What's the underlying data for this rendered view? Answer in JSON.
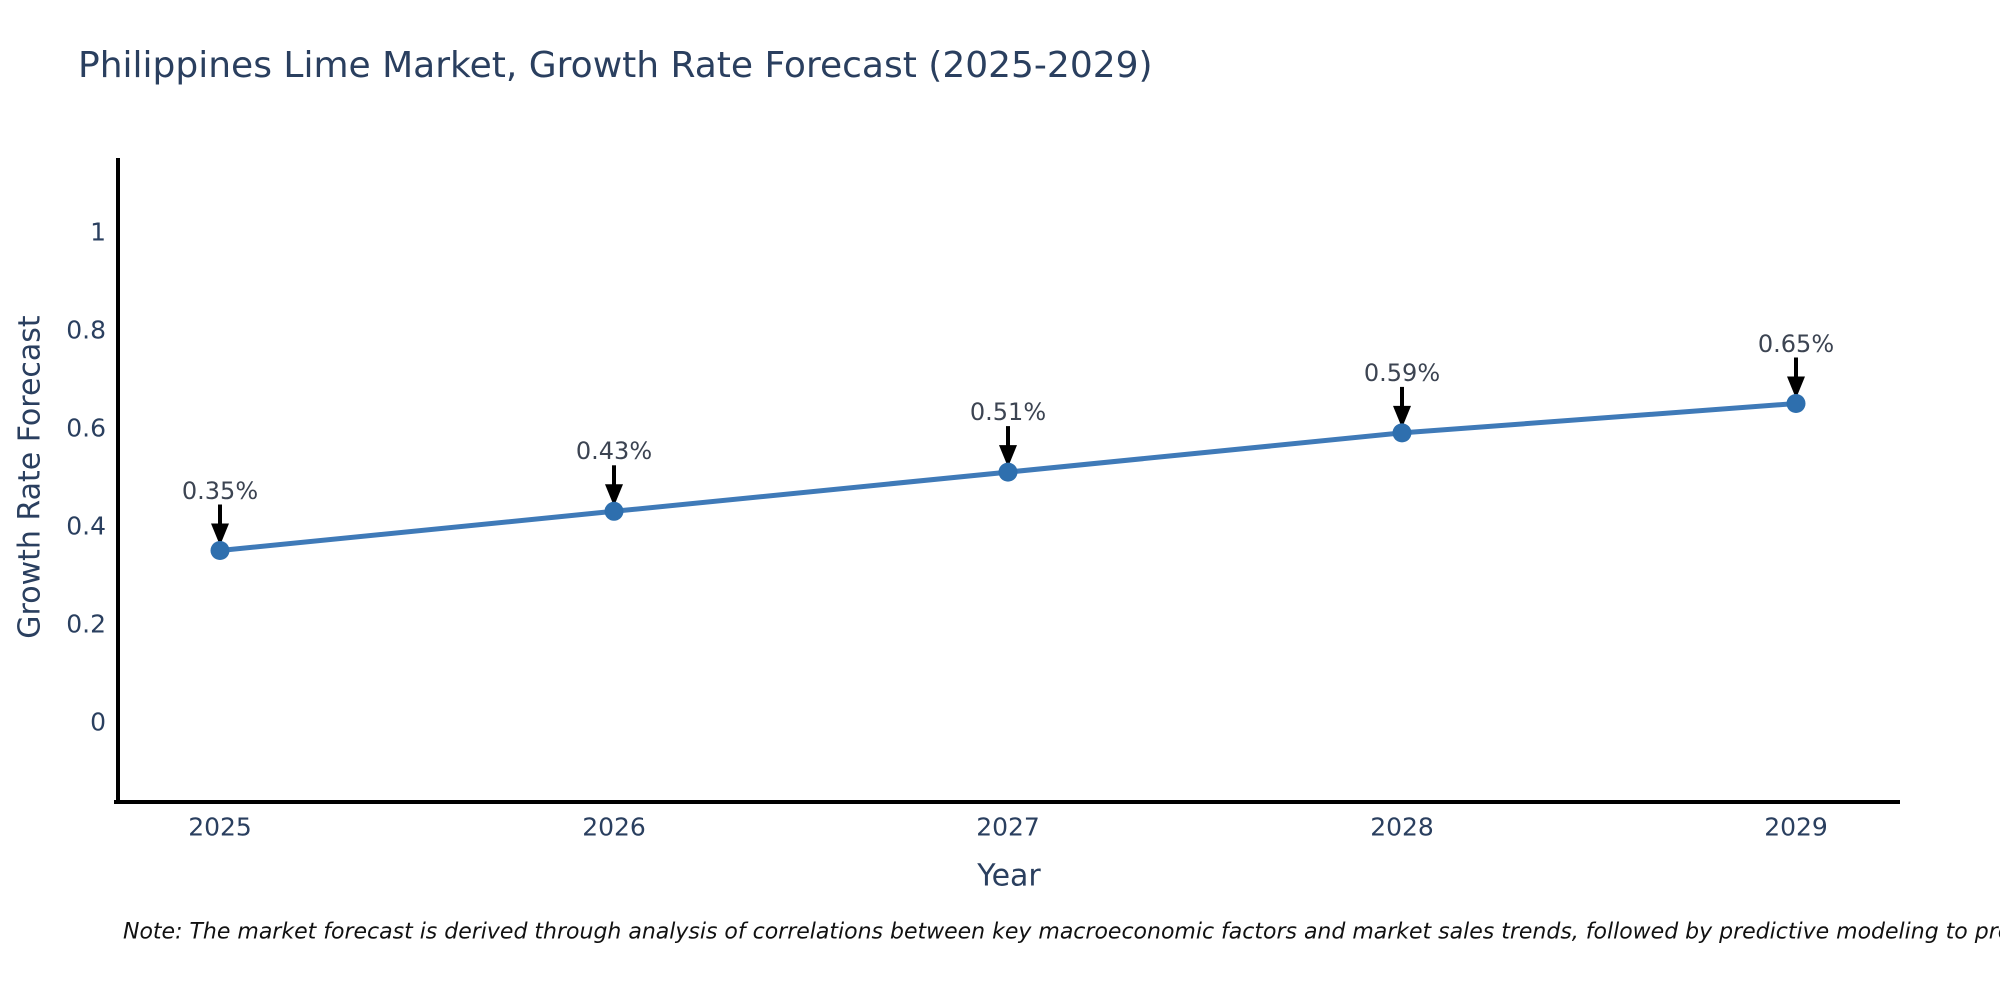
{
  "chart_data": {
    "type": "line",
    "title": "Philippines Lime Market, Growth Rate Forecast (2025-2029)",
    "xlabel": "Year",
    "ylabel": "Growth Rate Forecast",
    "categories": [
      "2025",
      "2026",
      "2027",
      "2028",
      "2029"
    ],
    "series": [
      {
        "name": "Growth Rate Forecast",
        "values": [
          0.35,
          0.43,
          0.51,
          0.59,
          0.65
        ]
      }
    ],
    "point_labels": [
      "0.35%",
      "0.43%",
      "0.51%",
      "0.59%",
      "0.65%"
    ],
    "yticks": [
      {
        "value": 0,
        "label": "0"
      },
      {
        "value": 0.2,
        "label": "0.2"
      },
      {
        "value": 0.4,
        "label": "0.4"
      },
      {
        "value": 0.6,
        "label": "0.6"
      },
      {
        "value": 0.8,
        "label": "0.8"
      },
      {
        "value": 1,
        "label": "1"
      }
    ],
    "ylim": [
      -0.16,
      1.15
    ],
    "grid": false,
    "legend": "none",
    "colors": {
      "line": "#3f7ab8",
      "marker": "#2e6fae",
      "arrow": "#000000",
      "axis_line": "#000000",
      "text": "#2a3f5f",
      "annotation_text": "#3c4452",
      "note_text": "#111111",
      "background": "#ffffff"
    },
    "note": "Note: The market forecast is derived through analysis of correlations between key macroeconomic factors and market sales trends, followed by predictive modeling to project future sales"
  }
}
